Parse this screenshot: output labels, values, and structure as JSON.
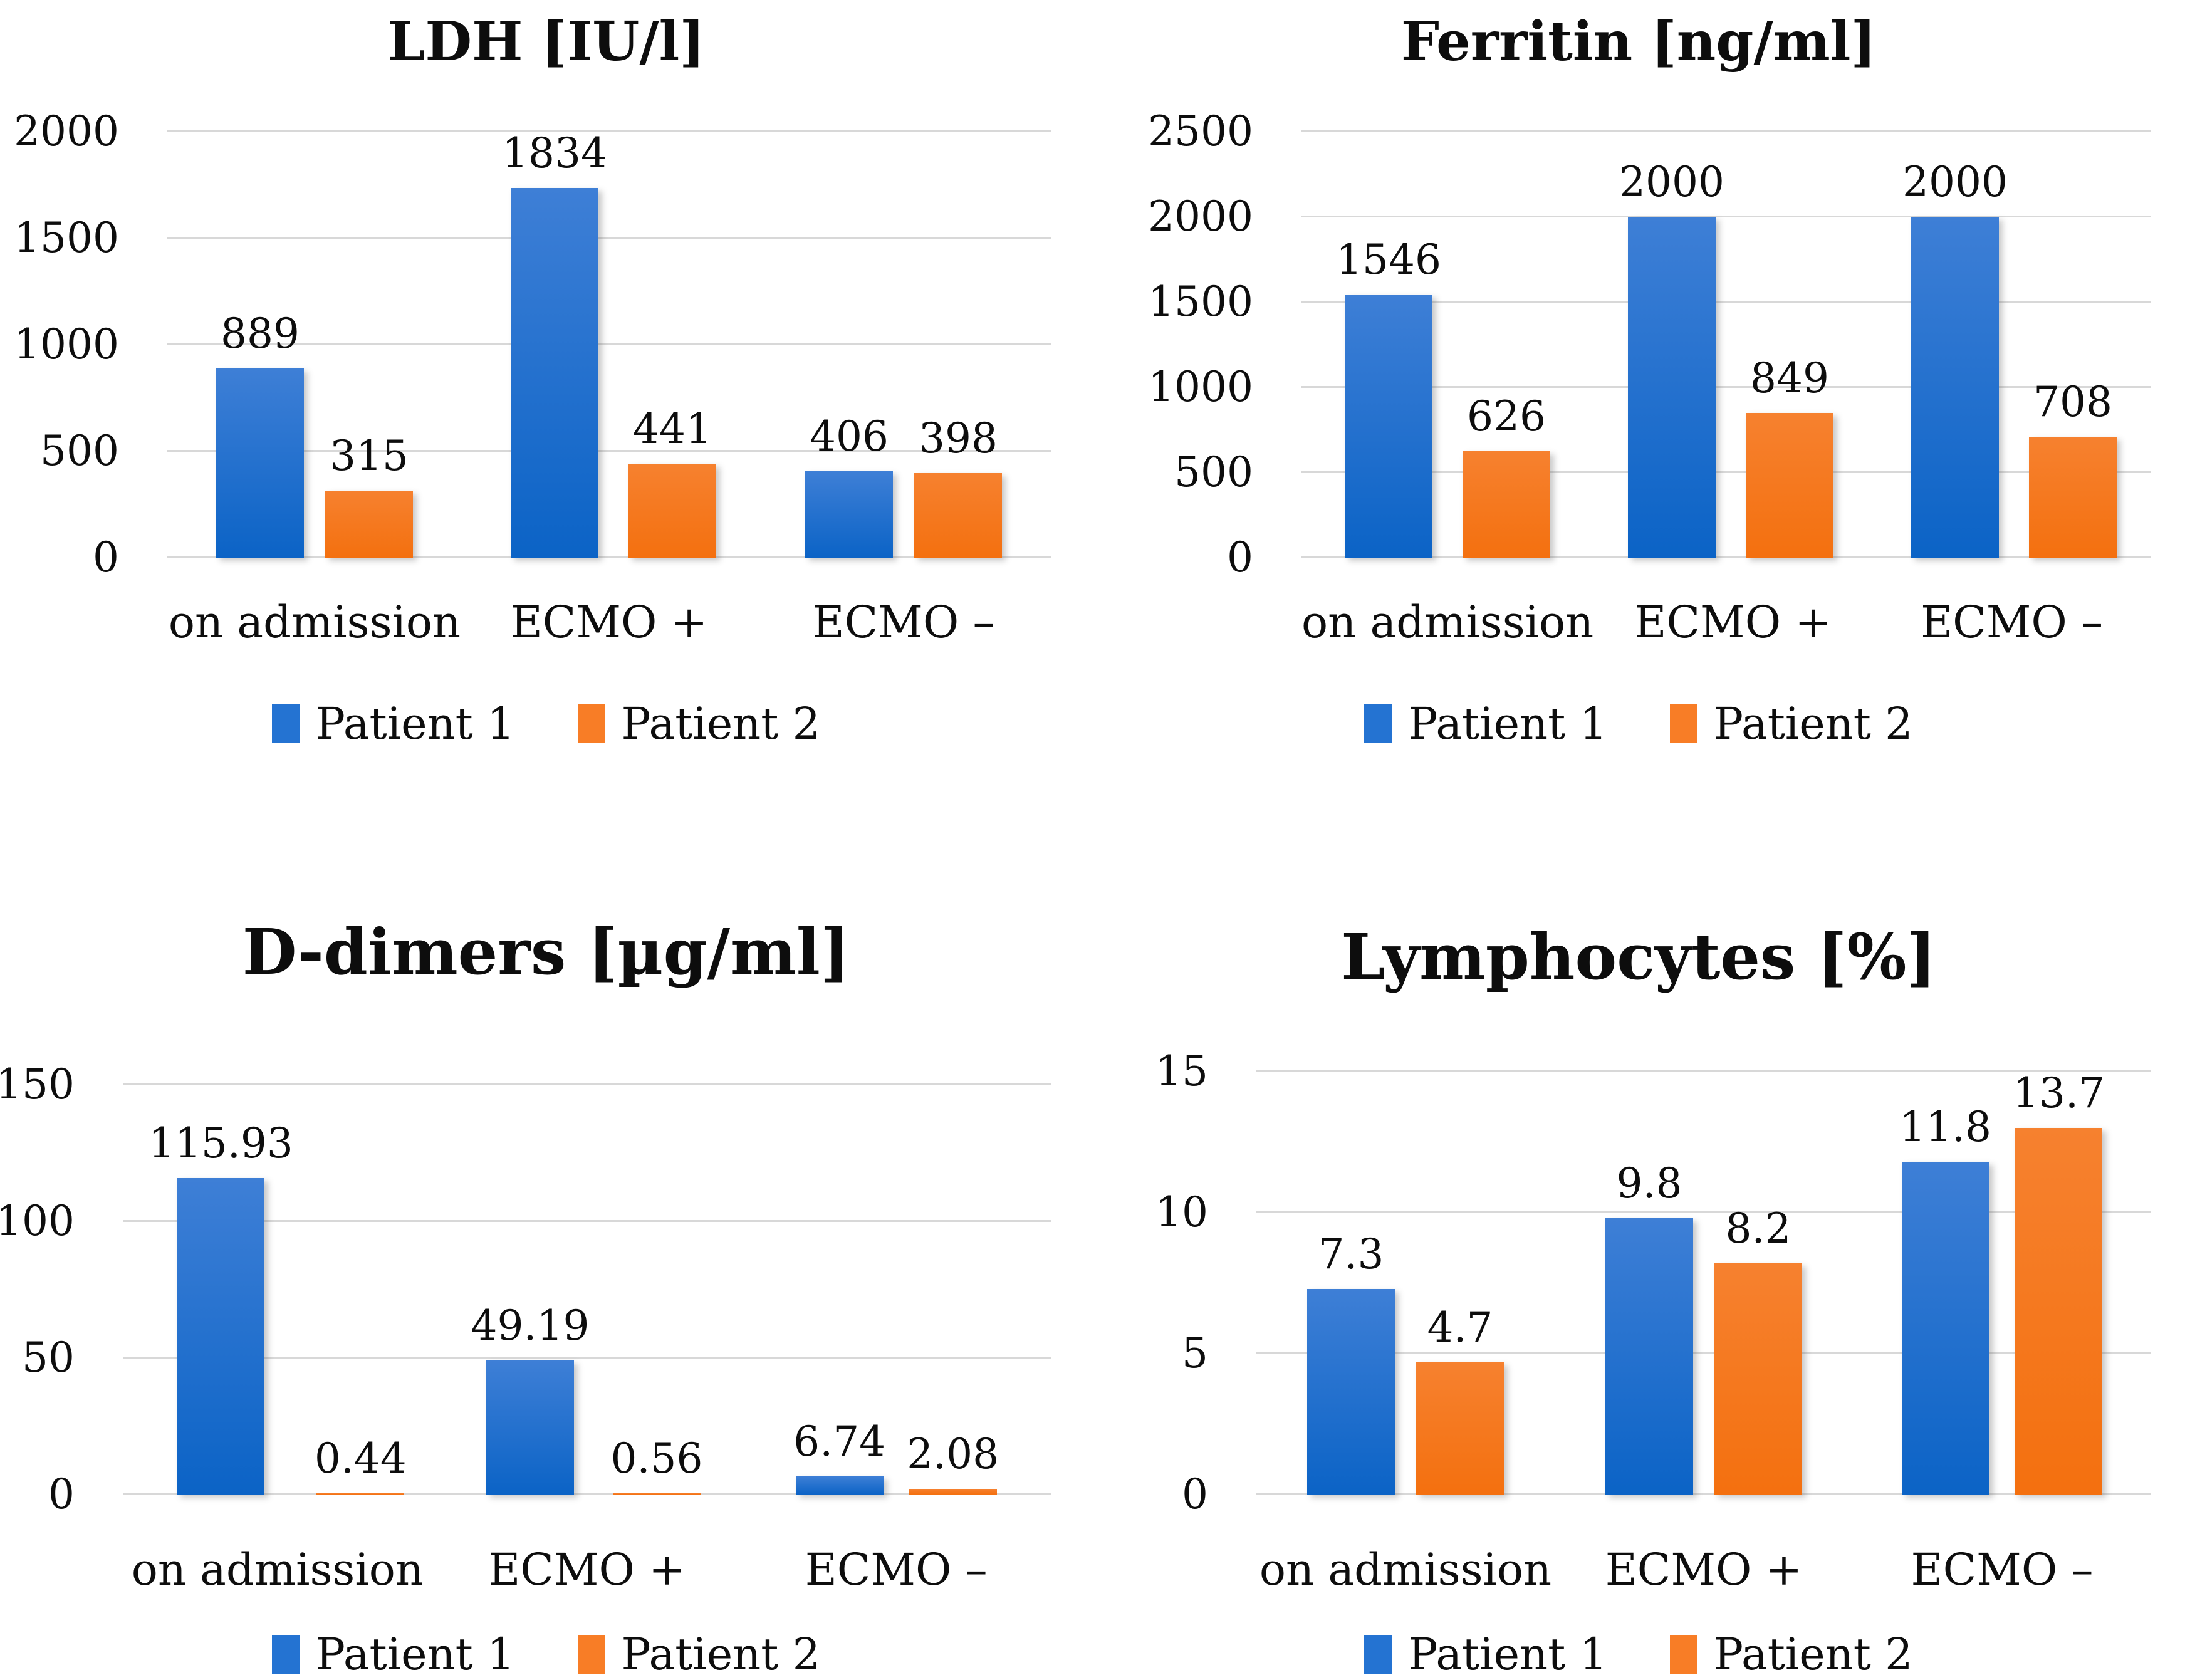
{
  "colors": {
    "patient1_bar_top": "#3E7FD6",
    "patient1_bar_bottom": "#0B63C6",
    "patient2_bar_top": "#F6812F",
    "patient2_bar_bottom": "#F4700F",
    "patient1_legend": "#2473D2",
    "patient2_legend": "#F87D26",
    "gridline": "#D8D8D8",
    "text": "#0D0D0D",
    "background": "#FFFFFF"
  },
  "legend": {
    "items": [
      {
        "name": "Patient 1"
      },
      {
        "name": "Patient 2"
      }
    ]
  },
  "chart_data": [
    {
      "type": "bar",
      "title": "LDH [IU/l]",
      "categories": [
        "on admission",
        "ECMO +",
        "ECMO –"
      ],
      "series": [
        {
          "name": "Patient 1",
          "values": [
            889,
            1834,
            406
          ]
        },
        {
          "name": "Patient 2",
          "values": [
            315,
            441,
            398
          ]
        }
      ],
      "ylim": [
        0,
        2000
      ],
      "yticks": [
        0,
        500,
        1000,
        1500,
        2000
      ],
      "grid": true,
      "legend_position": "bottom"
    },
    {
      "type": "bar",
      "title": "Ferritin [ng/ml]",
      "categories": [
        "on admission",
        "ECMO +",
        "ECMO –"
      ],
      "series": [
        {
          "name": "Patient 1",
          "values": [
            1546,
            2000,
            2000
          ]
        },
        {
          "name": "Patient 2",
          "values": [
            626,
            849,
            708
          ]
        }
      ],
      "ylim": [
        0,
        2500
      ],
      "yticks": [
        0,
        500,
        1000,
        1500,
        2000,
        2500
      ],
      "grid": true,
      "legend_position": "bottom"
    },
    {
      "type": "bar",
      "title": "D-dimers [µg/ml]",
      "categories": [
        "on admission",
        "ECMO +",
        "ECMO –"
      ],
      "series": [
        {
          "name": "Patient 1",
          "values": [
            115.93,
            49.19,
            6.74
          ]
        },
        {
          "name": "Patient 2",
          "values": [
            0.44,
            0.56,
            2.08
          ]
        }
      ],
      "ylim": [
        0,
        150
      ],
      "yticks": [
        0,
        50,
        100,
        150
      ],
      "grid": true,
      "legend_position": "bottom"
    },
    {
      "type": "bar",
      "title": "Lymphocytes [%]",
      "categories": [
        "on admission",
        "ECMO +",
        "ECMO –"
      ],
      "series": [
        {
          "name": "Patient 1",
          "values": [
            7.3,
            9.8,
            11.8
          ]
        },
        {
          "name": "Patient 2",
          "values": [
            4.7,
            8.2,
            13.7
          ]
        }
      ],
      "ylim": [
        0,
        15
      ],
      "yticks": [
        0,
        5,
        10,
        15
      ],
      "grid": true,
      "legend_position": "bottom"
    }
  ]
}
